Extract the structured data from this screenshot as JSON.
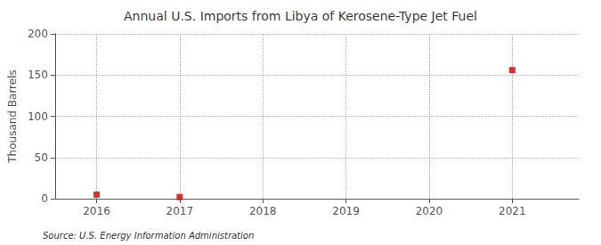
{
  "chart_data": {
    "type": "scatter",
    "title": "Annual U.S. Imports from Libya of Kerosene-Type Jet Fuel",
    "ylabel": "Thousand Barrels",
    "annotations": [
      "Source: U.S. Energy Information Administration"
    ],
    "x": [
      2016,
      2017,
      2018,
      2019,
      2020,
      2021
    ],
    "values": [
      5,
      2,
      null,
      null,
      null,
      156
    ],
    "xlim": [
      2015.5,
      2021.8
    ],
    "xticks": [
      2016,
      2017,
      2018,
      2019,
      2020,
      2021
    ],
    "ylim": [
      0,
      200
    ],
    "yticks": [
      0,
      50,
      100,
      150,
      200
    ],
    "color": "#cc0000",
    "marker": "square",
    "grid": true
  }
}
